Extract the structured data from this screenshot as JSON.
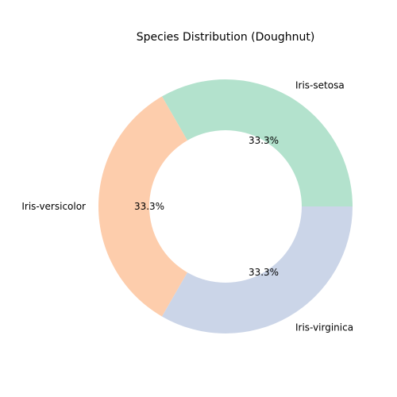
{
  "chart_data": {
    "type": "pie",
    "variant": "doughnut",
    "title": "Species Distribution (Doughnut)",
    "categories": [
      "Iris-setosa",
      "Iris-versicolor",
      "Iris-virginica"
    ],
    "values": [
      33.3,
      33.3,
      33.3
    ],
    "percent_labels": [
      "33.3%",
      "33.3%",
      "33.3%"
    ],
    "colors": [
      "#b3e2cd",
      "#fdcdac",
      "#cbd5e8"
    ],
    "legend": "none"
  }
}
